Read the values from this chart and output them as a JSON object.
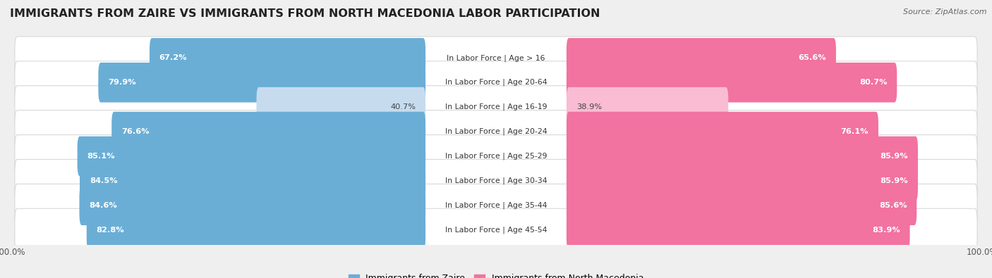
{
  "title": "IMMIGRANTS FROM ZAIRE VS IMMIGRANTS FROM NORTH MACEDONIA LABOR PARTICIPATION",
  "source": "Source: ZipAtlas.com",
  "categories": [
    "In Labor Force | Age > 16",
    "In Labor Force | Age 20-64",
    "In Labor Force | Age 16-19",
    "In Labor Force | Age 20-24",
    "In Labor Force | Age 25-29",
    "In Labor Force | Age 30-34",
    "In Labor Force | Age 35-44",
    "In Labor Force | Age 45-54"
  ],
  "zaire_values": [
    67.2,
    79.9,
    40.7,
    76.6,
    85.1,
    84.5,
    84.6,
    82.8
  ],
  "macedonia_values": [
    65.6,
    80.7,
    38.9,
    76.1,
    85.9,
    85.9,
    85.6,
    83.9
  ],
  "zaire_color": "#6aaed6",
  "zaire_color_light": "#c6dcee",
  "macedonia_color": "#f272a0",
  "macedonia_color_light": "#f9bcd3",
  "background_color": "#efefef",
  "row_bg_color": "#ffffff",
  "row_border_color": "#d8d8d8",
  "max_value": 100.0,
  "legend_zaire": "Immigrants from Zaire",
  "legend_macedonia": "Immigrants from North Macedonia",
  "title_fontsize": 11.5,
  "label_fontsize": 8.2,
  "cat_fontsize": 7.8
}
